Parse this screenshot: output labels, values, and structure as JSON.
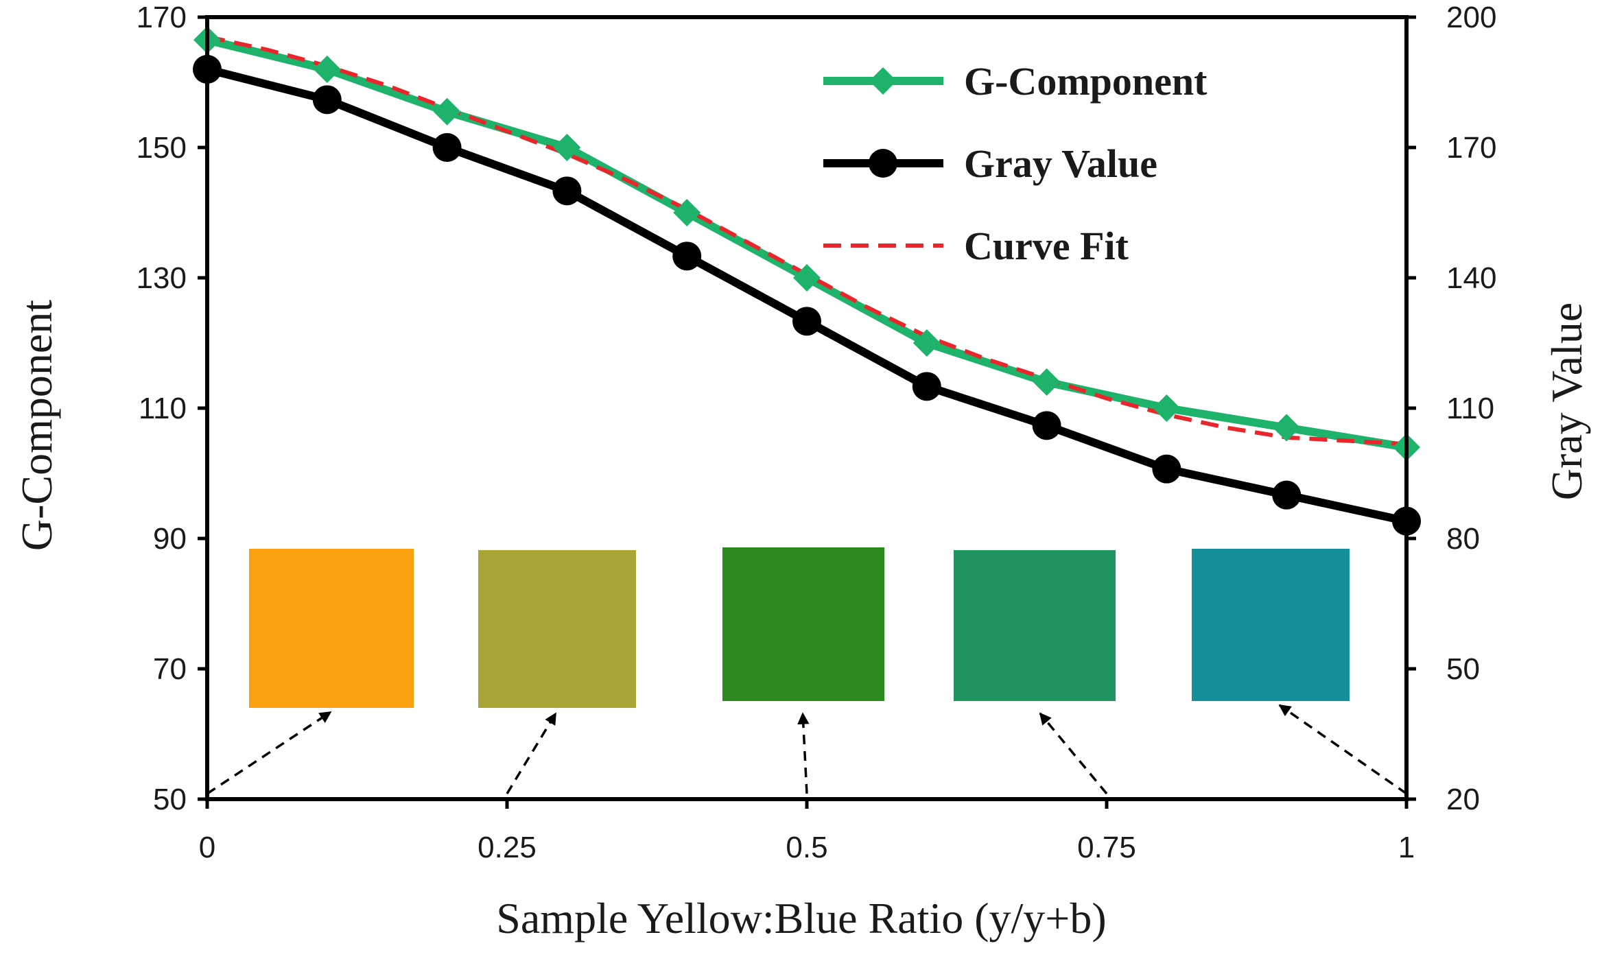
{
  "chart_data": {
    "type": "line",
    "title": "",
    "xlabel": "Sample Yellow:Blue Ratio (y/y+b)",
    "ylabel": "G-Component",
    "y2label": "Gray Value",
    "xlim": [
      0,
      1
    ],
    "ylim": [
      50,
      170
    ],
    "y2lim": [
      20,
      200
    ],
    "x_ticks": [
      0,
      0.25,
      0.5,
      0.75,
      1
    ],
    "x_tick_labels": [
      "0",
      "0.25",
      "0.5",
      "0.75",
      "1"
    ],
    "y_ticks": [
      50,
      70,
      90,
      110,
      130,
      150,
      170
    ],
    "y_tick_labels": [
      "50",
      "70",
      "90",
      "110",
      "130",
      "150",
      "170"
    ],
    "y2_ticks": [
      20,
      50,
      80,
      110,
      140,
      170,
      200
    ],
    "y2_tick_labels": [
      "20",
      "50",
      "80",
      "110",
      "140",
      "170",
      "200"
    ],
    "x": [
      0,
      0.1,
      0.2,
      0.3,
      0.4,
      0.5,
      0.6,
      0.7,
      0.8,
      0.9,
      1.0
    ],
    "series": [
      {
        "name": "G-Component",
        "axis": "left",
        "color": "#1db36b",
        "marker": "diamond",
        "values": [
          166.5,
          162,
          155.5,
          150,
          140,
          130,
          120,
          114,
          110,
          107,
          104
        ]
      },
      {
        "name": "Gray Value",
        "axis": "right",
        "color": "#000000",
        "marker": "circle",
        "values": [
          188,
          181,
          170,
          160,
          145,
          130,
          115,
          106,
          96,
          90,
          84
        ]
      },
      {
        "name": "Curve Fit",
        "axis": "left",
        "color": "#e8262b",
        "style": "dashed",
        "x": [
          0,
          0.05,
          0.1,
          0.15,
          0.2,
          0.25,
          0.3,
          0.35,
          0.4,
          0.45,
          0.5,
          0.55,
          0.6,
          0.65,
          0.7,
          0.75,
          0.8,
          0.85,
          0.9,
          0.95,
          1.0
        ],
        "values": [
          167,
          165,
          162.5,
          159.5,
          156,
          152.5,
          149,
          145,
          140.5,
          135.5,
          130.5,
          125.5,
          121,
          117.5,
          114.5,
          111.5,
          109,
          107,
          105.5,
          105,
          104.5
        ]
      }
    ],
    "legend": {
      "position": "top-right",
      "entries": [
        "G-Component",
        "Gray Value",
        "Curve Fit"
      ]
    },
    "swatches": [
      {
        "name": "ratio-0",
        "color": "#f9a10f",
        "points_to_x": 0
      },
      {
        "name": "ratio-0.25",
        "color": "#a8a637",
        "points_to_x": 0.25
      },
      {
        "name": "ratio-0.5",
        "color": "#2b8b1f",
        "points_to_x": 0.5
      },
      {
        "name": "ratio-0.75",
        "color": "#209561",
        "points_to_x": 0.75
      },
      {
        "name": "ratio-1",
        "color": "#15909a",
        "points_to_x": 1
      }
    ],
    "grid": false
  }
}
